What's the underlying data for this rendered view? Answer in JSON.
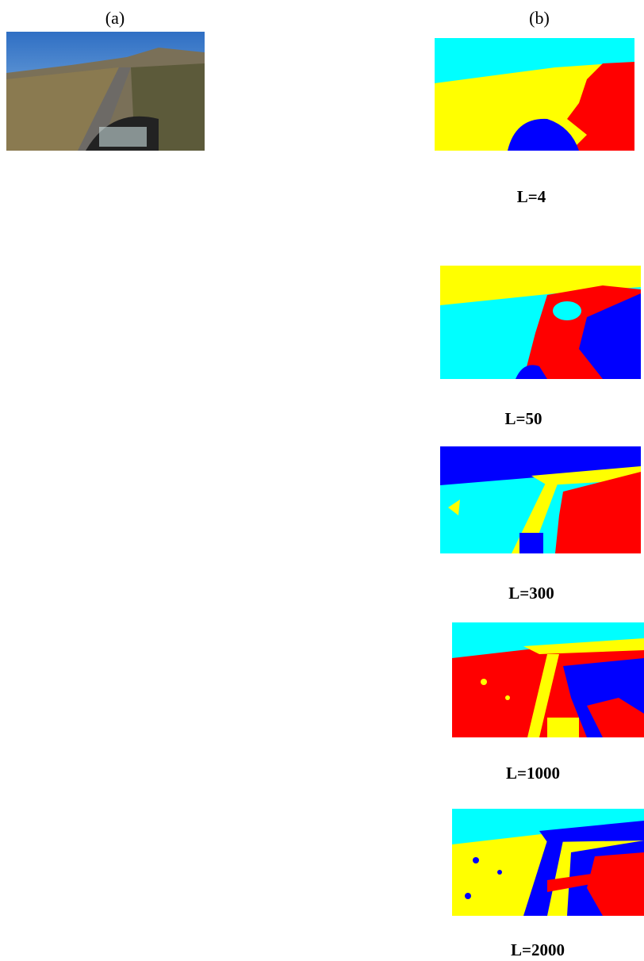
{
  "panel_a": {
    "label": "(a)"
  },
  "panel_b": {
    "label": "(b)",
    "results": [
      {
        "label": "L=4"
      },
      {
        "label": "L=50"
      },
      {
        "label": "L=300"
      },
      {
        "label": "L=1000"
      },
      {
        "label": "L=2000"
      }
    ]
  }
}
